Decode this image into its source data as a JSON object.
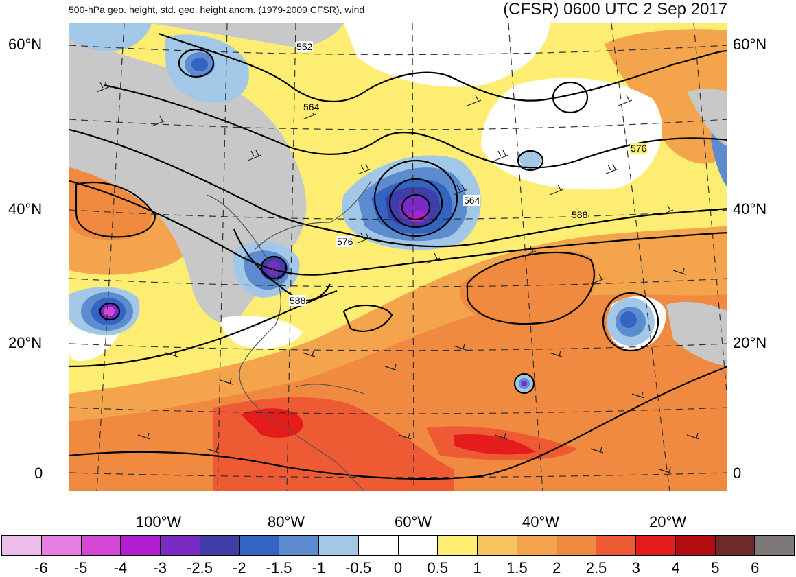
{
  "header": {
    "title_left": "500-hPa geo. height, std. geo. height anom. (1979-2009 CFSR), wind",
    "title_right": "(CFSR) 0600 UTC 2 Sep 2017"
  },
  "axes": {
    "lat_left": [
      "60°N",
      "40°N",
      "20°N",
      "0"
    ],
    "lat_right": [
      "60°N",
      "40°N",
      "20°N",
      "0"
    ],
    "lon_bottom": [
      "100°W",
      "80°W",
      "60°W",
      "40°W",
      "20°W"
    ]
  },
  "contour_labels": [
    "552",
    "564",
    "576",
    "564",
    "576",
    "588",
    "588"
  ],
  "colorbar": {
    "colors": [
      "#ecbde8",
      "#e680e0",
      "#d548d5",
      "#b11ecf",
      "#7a2bc4",
      "#3f3da8",
      "#3464c2",
      "#5c8ccf",
      "#a3c7e6",
      "#ffffff",
      "#ffffff",
      "#fdee73",
      "#f6c35e",
      "#f3a44d",
      "#f08a40",
      "#ed5a33",
      "#e51c1c",
      "#b30c10",
      "#6e2a28",
      "#7e7878"
    ],
    "labels": [
      "-6",
      "-5",
      "-4",
      "-3",
      "-2.5",
      "-2",
      "-1.5",
      "-1",
      "-0.5",
      "0",
      "0.5",
      "1",
      "1.5",
      "2",
      "2.5",
      "3",
      "4",
      "5",
      "6"
    ]
  }
}
